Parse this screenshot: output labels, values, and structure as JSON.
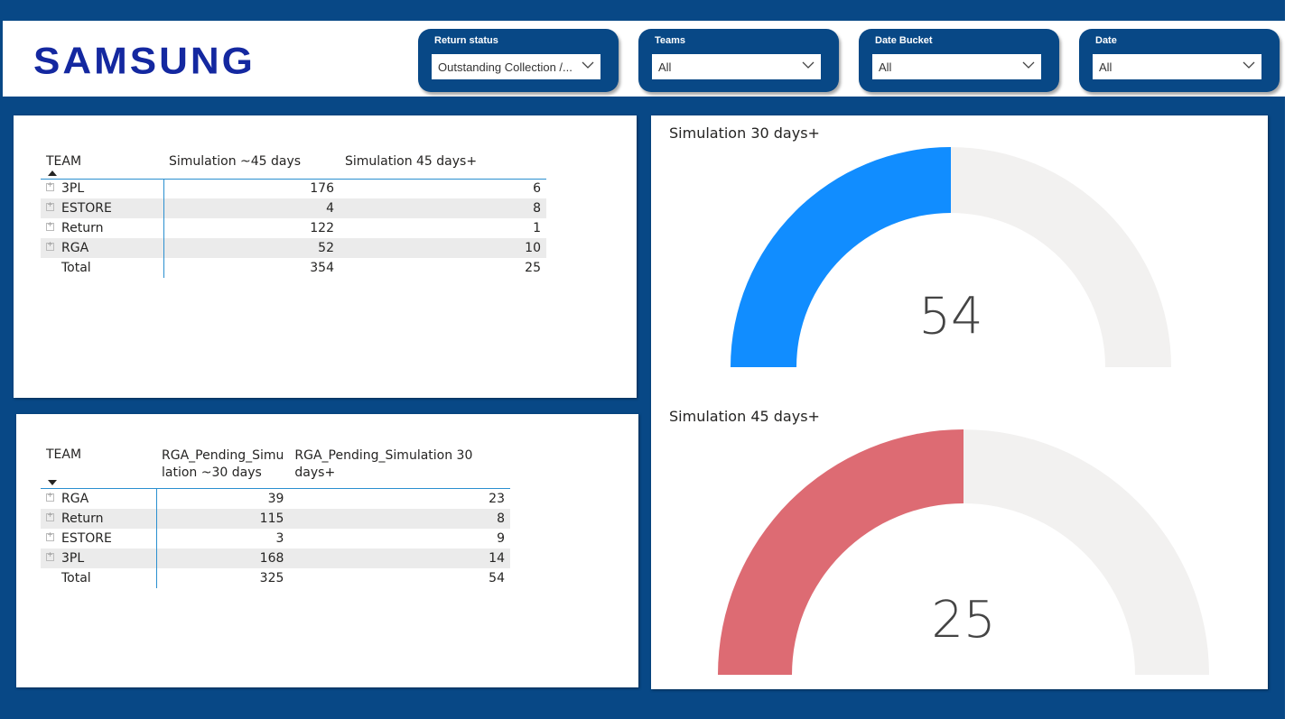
{
  "brand": {
    "logo_text": "SAMSUNG",
    "logo_color": "#1428a0"
  },
  "slicers": [
    {
      "title": "Return status",
      "value": "Outstanding Collection /..."
    },
    {
      "title": "Teams",
      "value": "All"
    },
    {
      "title": "Date Bucket",
      "value": "All"
    },
    {
      "title": "Date",
      "value": "All"
    }
  ],
  "table1": {
    "headers": [
      "TEAM",
      "Simulation ~45 days",
      "Simulation 45 days+"
    ],
    "sort": "ascending",
    "rows": [
      {
        "team": "3PL",
        "a": "176",
        "b": "6"
      },
      {
        "team": "ESTORE",
        "a": "4",
        "b": "8"
      },
      {
        "team": "Return",
        "a": "122",
        "b": "1"
      },
      {
        "team": "RGA",
        "a": "52",
        "b": "10"
      }
    ],
    "total": {
      "team": "Total",
      "a": "354",
      "b": "25"
    }
  },
  "table2": {
    "headers": [
      "TEAM",
      "RGA_Pending_Simu lation ~30 days",
      "RGA_Pending_Simulation 30 days+"
    ],
    "sort": "descending",
    "rows": [
      {
        "team": "RGA",
        "a": "39",
        "b": "23"
      },
      {
        "team": "Return",
        "a": "115",
        "b": "8"
      },
      {
        "team": "ESTORE",
        "a": "3",
        "b": "9"
      },
      {
        "team": "3PL",
        "a": "168",
        "b": "14"
      }
    ],
    "total": {
      "team": "Total",
      "a": "325",
      "b": "54"
    }
  },
  "gauges": [
    {
      "title": "Simulation 30 days+",
      "value": "54",
      "fill_fraction": 0.5,
      "color": "#118dff",
      "track_color": "#f2f1f0"
    },
    {
      "title": "Simulation 45 days+",
      "value": "25",
      "fill_fraction": 0.5,
      "color": "#dd6b73",
      "track_color": "#f2f1f0"
    }
  ],
  "icons": {
    "dropdown": "chevron-down-icon",
    "expand": "expand-plus-icon",
    "sort": "sort-arrow-icon"
  }
}
